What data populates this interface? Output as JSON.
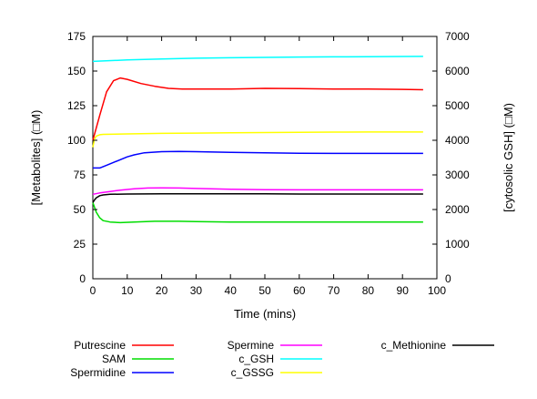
{
  "chart_data": {
    "type": "line",
    "xlabel": "Time (mins)",
    "ylabel": "[Metabolites] (□M)",
    "y2label": "[cytosolic GSH] (□M)",
    "xlim": [
      0,
      100
    ],
    "ylim": [
      0,
      175
    ],
    "y2lim": [
      0,
      7000
    ],
    "xticks": [
      0,
      10,
      20,
      30,
      40,
      50,
      60,
      70,
      80,
      90,
      100
    ],
    "yticks": [
      0,
      25,
      50,
      75,
      100,
      125,
      150,
      175
    ],
    "y2ticks": [
      0,
      1000,
      2000,
      3000,
      4000,
      5000,
      6000,
      7000
    ],
    "grid": false,
    "legend_position": "bottom",
    "series": [
      {
        "name": "Putrescine",
        "color": "#ff0000",
        "axis": "left",
        "points": [
          [
            0,
            100
          ],
          [
            2,
            118
          ],
          [
            4,
            135
          ],
          [
            6,
            143
          ],
          [
            8,
            145
          ],
          [
            10,
            144
          ],
          [
            14,
            141
          ],
          [
            18,
            139
          ],
          [
            22,
            137.5
          ],
          [
            26,
            137
          ],
          [
            30,
            137
          ],
          [
            40,
            137
          ],
          [
            50,
            137.5
          ],
          [
            60,
            137.3
          ],
          [
            70,
            137
          ],
          [
            80,
            137
          ],
          [
            90,
            136.8
          ],
          [
            96,
            136.5
          ]
        ]
      },
      {
        "name": "SAM",
        "color": "#00dd00",
        "axis": "left",
        "points": [
          [
            0,
            55
          ],
          [
            1,
            48
          ],
          [
            2,
            44
          ],
          [
            3,
            42
          ],
          [
            5,
            41
          ],
          [
            8,
            40.5
          ],
          [
            12,
            41
          ],
          [
            18,
            41.5
          ],
          [
            25,
            41.5
          ],
          [
            30,
            41.3
          ],
          [
            40,
            41
          ],
          [
            50,
            41
          ],
          [
            60,
            41
          ],
          [
            70,
            41
          ],
          [
            80,
            41
          ],
          [
            90,
            41
          ],
          [
            96,
            41
          ]
        ]
      },
      {
        "name": "Spermidine",
        "color": "#0000ff",
        "axis": "left",
        "points": [
          [
            0,
            80
          ],
          [
            2,
            80
          ],
          [
            4,
            82
          ],
          [
            6,
            84
          ],
          [
            8,
            86
          ],
          [
            10,
            88
          ],
          [
            12,
            89.5
          ],
          [
            15,
            91
          ],
          [
            20,
            91.8
          ],
          [
            25,
            92
          ],
          [
            30,
            91.8
          ],
          [
            40,
            91.3
          ],
          [
            50,
            91
          ],
          [
            60,
            90.6
          ],
          [
            70,
            90.5
          ],
          [
            80,
            90.5
          ],
          [
            90,
            90.5
          ],
          [
            96,
            90.5
          ]
        ]
      },
      {
        "name": "Spermine",
        "color": "#ff00ff",
        "axis": "left",
        "points": [
          [
            0,
            61
          ],
          [
            2,
            62
          ],
          [
            5,
            63
          ],
          [
            8,
            64
          ],
          [
            12,
            65
          ],
          [
            16,
            65.5
          ],
          [
            20,
            65.6
          ],
          [
            25,
            65.5
          ],
          [
            30,
            65.2
          ],
          [
            40,
            64.6
          ],
          [
            50,
            64.3
          ],
          [
            60,
            64.2
          ],
          [
            70,
            64.2
          ],
          [
            80,
            64.2
          ],
          [
            90,
            64.2
          ],
          [
            96,
            64.2
          ]
        ]
      },
      {
        "name": "c_GSH",
        "color": "#00ffff",
        "axis": "right",
        "points": [
          [
            0,
            6280
          ],
          [
            10,
            6320
          ],
          [
            20,
            6350
          ],
          [
            30,
            6370
          ],
          [
            40,
            6385
          ],
          [
            50,
            6395
          ],
          [
            60,
            6405
          ],
          [
            70,
            6410
          ],
          [
            80,
            6415
          ],
          [
            90,
            6420
          ],
          [
            96,
            6425
          ]
        ]
      },
      {
        "name": "c_GSSG",
        "color": "#ffff00",
        "axis": "left",
        "points": [
          [
            0,
            95
          ],
          [
            0.5,
            101
          ],
          [
            1,
            103
          ],
          [
            2,
            104
          ],
          [
            3,
            104.3
          ],
          [
            10,
            104.6
          ],
          [
            20,
            105
          ],
          [
            30,
            105.2
          ],
          [
            40,
            105.4
          ],
          [
            50,
            105.6
          ],
          [
            60,
            105.8
          ],
          [
            70,
            105.9
          ],
          [
            80,
            106
          ],
          [
            90,
            106
          ],
          [
            96,
            106
          ]
        ]
      },
      {
        "name": "c_Methionine",
        "color": "#000000",
        "axis": "left",
        "points": [
          [
            0,
            55
          ],
          [
            0.5,
            57
          ],
          [
            1,
            58.5
          ],
          [
            2,
            60
          ],
          [
            3,
            60.5
          ],
          [
            5,
            61
          ],
          [
            10,
            61.2
          ],
          [
            20,
            61.3
          ],
          [
            30,
            61.3
          ],
          [
            40,
            61.3
          ],
          [
            50,
            61.3
          ],
          [
            60,
            61.2
          ],
          [
            70,
            61.2
          ],
          [
            80,
            61.2
          ],
          [
            90,
            61.2
          ],
          [
            96,
            61.2
          ]
        ]
      }
    ]
  }
}
